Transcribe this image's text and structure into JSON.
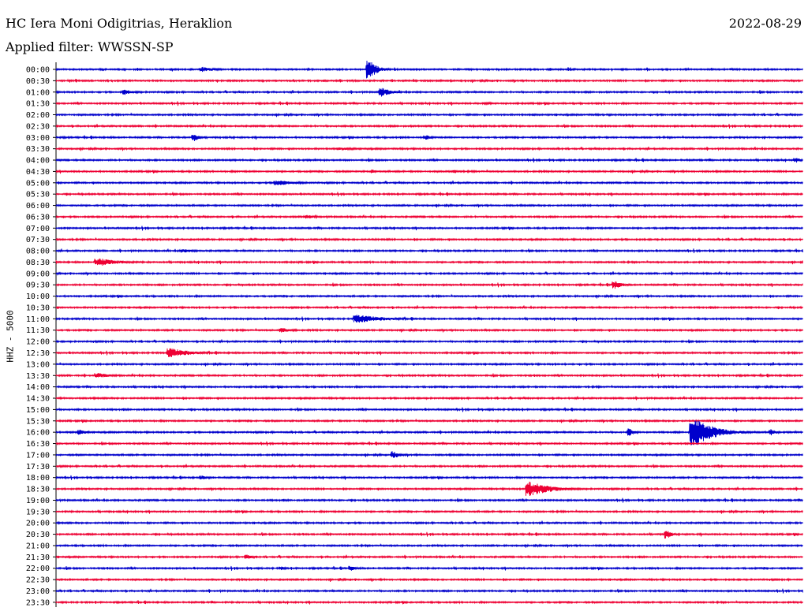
{
  "header": {
    "station": "HC Iera Moni Odigitrias, Heraklion",
    "date": "2022-08-29",
    "filter": "Applied filter: WWSSN-SP"
  },
  "chart_data": {
    "type": "line",
    "subtype": "helicorder",
    "title": "HC Iera Moni Odigitrias, Heraklion",
    "date": "2022-08-29",
    "subtitle": "Applied filter: WWSSN-SP",
    "ylabel": "HHZ - 5000",
    "xlabel": "",
    "grid": false,
    "trace_colors": [
      "#0000cc",
      "#ee0033"
    ],
    "row_labels": [
      "00:00",
      "00:30",
      "01:00",
      "01:30",
      "02:00",
      "02:30",
      "03:00",
      "03:30",
      "04:00",
      "04:30",
      "05:00",
      "05:30",
      "06:00",
      "06:30",
      "07:00",
      "07:30",
      "08:00",
      "08:30",
      "09:00",
      "09:30",
      "10:00",
      "10:30",
      "11:00",
      "11:30",
      "12:00",
      "12:30",
      "13:00",
      "13:30",
      "14:00",
      "14:30",
      "15:00",
      "15:30",
      "16:00",
      "16:30",
      "17:00",
      "17:30",
      "18:00",
      "18:30",
      "19:00",
      "19:30",
      "20:00",
      "20:30",
      "21:00",
      "21:30",
      "22:00",
      "22:30",
      "23:00",
      "23:30"
    ],
    "events": [
      {
        "row": 0,
        "minute": 5.8,
        "amplitude": 4,
        "duration": 1.0
      },
      {
        "row": 0,
        "minute": 12.5,
        "amplitude": 16,
        "duration": 0.6
      },
      {
        "row": 2,
        "minute": 2.7,
        "amplitude": 4,
        "duration": 0.8
      },
      {
        "row": 2,
        "minute": 13.0,
        "amplitude": 7,
        "duration": 0.8
      },
      {
        "row": 3,
        "minute": 17.2,
        "amplitude": 2,
        "duration": 1.0
      },
      {
        "row": 6,
        "minute": 5.5,
        "amplitude": 6,
        "duration": 0.4
      },
      {
        "row": 6,
        "minute": 14.8,
        "amplitude": 4,
        "duration": 0.5
      },
      {
        "row": 7,
        "minute": 11.4,
        "amplitude": 2,
        "duration": 1.5
      },
      {
        "row": 8,
        "minute": 29.7,
        "amplitude": 4,
        "duration": 0.5
      },
      {
        "row": 9,
        "minute": 12.7,
        "amplitude": 3,
        "duration": 0.3
      },
      {
        "row": 9,
        "minute": 16.0,
        "amplitude": 3,
        "duration": 0.3
      },
      {
        "row": 10,
        "minute": 8.8,
        "amplitude": 4,
        "duration": 1.5
      },
      {
        "row": 13,
        "minute": 10.0,
        "amplitude": 3,
        "duration": 1.0
      },
      {
        "row": 16,
        "minute": 5.0,
        "amplitude": 3,
        "duration": 1.0
      },
      {
        "row": 17,
        "minute": 1.6,
        "amplitude": 6,
        "duration": 1.5
      },
      {
        "row": 19,
        "minute": 22.4,
        "amplitude": 6,
        "duration": 0.6
      },
      {
        "row": 22,
        "minute": 12.0,
        "amplitude": 6,
        "duration": 2.0
      },
      {
        "row": 23,
        "minute": 9.0,
        "amplitude": 4,
        "duration": 0.8
      },
      {
        "row": 25,
        "minute": 4.5,
        "amplitude": 7,
        "duration": 1.5
      },
      {
        "row": 27,
        "minute": 1.6,
        "amplitude": 4,
        "duration": 1.0
      },
      {
        "row": 32,
        "minute": 0.9,
        "amplitude": 4,
        "duration": 0.6
      },
      {
        "row": 32,
        "minute": 23.0,
        "amplitude": 6,
        "duration": 0.4
      },
      {
        "row": 32,
        "minute": 25.5,
        "amplitude": 22,
        "duration": 1.5
      },
      {
        "row": 32,
        "minute": 28.7,
        "amplitude": 5,
        "duration": 0.4
      },
      {
        "row": 34,
        "minute": 13.5,
        "amplitude": 6,
        "duration": 0.5
      },
      {
        "row": 36,
        "minute": 5.8,
        "amplitude": 3,
        "duration": 0.7
      },
      {
        "row": 37,
        "minute": 18.9,
        "amplitude": 11,
        "duration": 1.6
      },
      {
        "row": 41,
        "minute": 24.5,
        "amplitude": 7,
        "duration": 0.4
      },
      {
        "row": 43,
        "minute": 7.6,
        "amplitude": 4,
        "duration": 0.5
      },
      {
        "row": 44,
        "minute": 9.0,
        "amplitude": 3,
        "duration": 0.4
      },
      {
        "row": 44,
        "minute": 11.8,
        "amplitude": 4,
        "duration": 0.4
      }
    ]
  }
}
